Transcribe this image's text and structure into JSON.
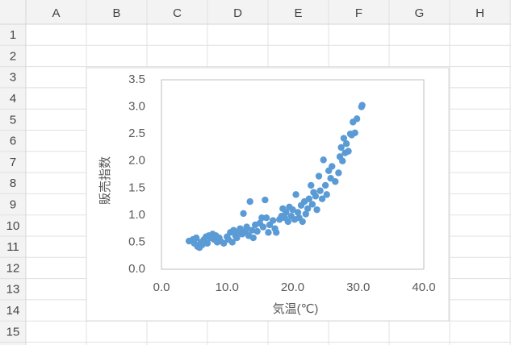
{
  "sheet": {
    "columns": [
      "A",
      "B",
      "C",
      "D",
      "E",
      "F",
      "G",
      "H"
    ],
    "rows": [
      1,
      2,
      3,
      4,
      5,
      6,
      7,
      8,
      9,
      10,
      11,
      12,
      13,
      14,
      15
    ]
  },
  "chart_data": {
    "type": "scatter",
    "color": "#5b9bd5",
    "x_label": "気温(℃)",
    "y_label": "販売指数",
    "xlim": [
      0,
      40
    ],
    "ylim": [
      0,
      3.5
    ],
    "xticks": [
      {
        "value": 0,
        "label": "0.0"
      },
      {
        "value": 10,
        "label": "10.0"
      },
      {
        "value": 20,
        "label": "20.0"
      },
      {
        "value": 30,
        "label": "30.0"
      },
      {
        "value": 40,
        "label": "40.0"
      }
    ],
    "yticks": [
      {
        "value": 0,
        "label": "0.0"
      },
      0.5,
      {
        "value": 1,
        "label": "1.0"
      },
      1.5,
      {
        "value": 2,
        "label": "2.0"
      },
      2.5,
      {
        "value": 3,
        "label": "3.0"
      },
      3.5
    ],
    "x": [
      4.2,
      4.8,
      5.0,
      5.3,
      5.5,
      5.8,
      6.0,
      6.2,
      6.5,
      6.8,
      7.0,
      7.2,
      7.5,
      7.8,
      8.0,
      8.3,
      8.5,
      8.8,
      9.0,
      9.5,
      10.0,
      10.2,
      10.5,
      10.8,
      11.0,
      11.3,
      11.5,
      11.8,
      12.0,
      12.3,
      12.5,
      12.8,
      13.0,
      13.3,
      13.5,
      13.8,
      14.0,
      14.3,
      14.6,
      15.0,
      15.3,
      15.5,
      15.8,
      16.0,
      16.3,
      16.5,
      17.0,
      17.3,
      17.5,
      18.0,
      18.3,
      18.5,
      18.8,
      19.0,
      19.3,
      19.5,
      19.8,
      20.0,
      20.3,
      20.5,
      20.8,
      21.0,
      21.3,
      21.5,
      21.8,
      22.0,
      22.3,
      22.5,
      22.8,
      23.0,
      23.2,
      23.5,
      23.7,
      24.0,
      24.2,
      24.5,
      24.7,
      25.0,
      25.2,
      25.5,
      25.8,
      26.0,
      26.5,
      27.0,
      27.2,
      27.4,
      27.6,
      27.8,
      28.0,
      28.2,
      28.5,
      28.8,
      29.0,
      29.2,
      29.5,
      29.8,
      30.5,
      30.6
    ],
    "values": [
      0.52,
      0.55,
      0.48,
      0.58,
      0.42,
      0.4,
      0.5,
      0.45,
      0.55,
      0.6,
      0.48,
      0.62,
      0.58,
      0.65,
      0.55,
      0.62,
      0.5,
      0.58,
      0.52,
      0.48,
      0.6,
      0.55,
      0.68,
      0.5,
      0.72,
      0.62,
      0.58,
      0.7,
      0.75,
      0.65,
      1.03,
      0.7,
      0.78,
      0.62,
      1.25,
      0.72,
      0.58,
      0.82,
      0.7,
      0.85,
      0.95,
      0.78,
      1.28,
      0.95,
      0.68,
      0.82,
      0.9,
      0.75,
      0.68,
      0.92,
      0.98,
      1.12,
      0.95,
      1.05,
      0.88,
      1.15,
      0.98,
      1.1,
      0.92,
      1.38,
      1.05,
      0.95,
      1.18,
      0.88,
      1.25,
      1.02,
      1.12,
      1.3,
      1.55,
      1.2,
      1.42,
      1.35,
      1.1,
      1.72,
      1.45,
      1.3,
      2.02,
      1.55,
      1.38,
      1.82,
      1.68,
      1.9,
      1.62,
      1.78,
      2.08,
      2.25,
      2.0,
      2.42,
      2.15,
      2.32,
      2.18,
      2.5,
      2.48,
      2.72,
      2.52,
      2.78,
      3.0,
      3.03
    ]
  }
}
